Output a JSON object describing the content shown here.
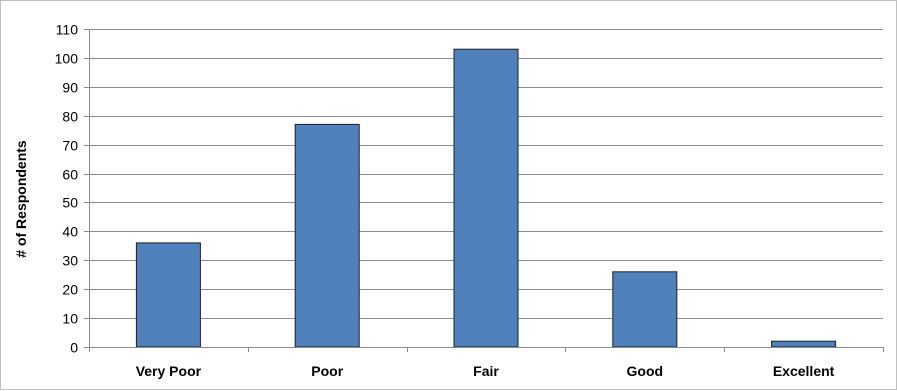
{
  "chart_data": {
    "type": "bar",
    "title": "",
    "xlabel": "",
    "ylabel": "# of Respondents",
    "categories": [
      "Very Poor",
      "Poor",
      "Fair",
      "Good",
      "Excellent"
    ],
    "values": [
      36,
      77,
      103,
      26,
      2
    ],
    "ylim": [
      0,
      110
    ],
    "yticks": [
      0,
      10,
      20,
      30,
      40,
      50,
      60,
      70,
      80,
      90,
      100,
      110
    ],
    "grid": true,
    "legend": "none",
    "colors": {
      "bar": "#4f81bd",
      "bar_edge": "#1f1f1f",
      "grid": "#8c8c8c",
      "axis": "#8c8c8c"
    }
  }
}
